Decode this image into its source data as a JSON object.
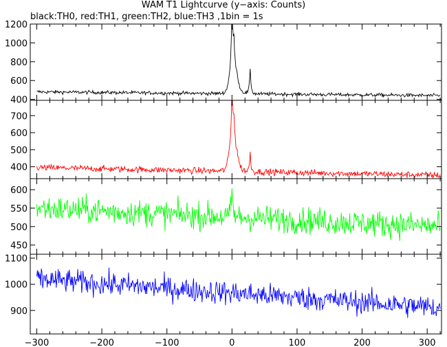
{
  "title": "WAM T1 Lightcurve (y−axis: Counts)",
  "subtitle": "black:TH0, red:TH1, green:TH2, blue:TH3 ,1bin = 1s",
  "chart_data": [
    {
      "type": "line",
      "name": "TH0",
      "color": "#000000",
      "ylim": [
        390,
        1200
      ],
      "yticks": [
        400,
        600,
        800,
        1000,
        1200
      ],
      "xlim": [
        -310,
        322
      ],
      "baseline_start": 480,
      "baseline_end": 440,
      "noise": 16,
      "features": [
        {
          "x": 0,
          "y": 1200,
          "width": 2.2
        },
        {
          "x": 3,
          "y": 880,
          "width": 3
        },
        {
          "x": 8,
          "y": 620,
          "width": 4
        },
        {
          "x": 28,
          "y": 740,
          "width": 1.5
        },
        {
          "x": -5,
          "y": 540,
          "width": 3
        }
      ]
    },
    {
      "type": "line",
      "name": "TH1",
      "color": "#ff0000",
      "ylim": [
        330,
        790
      ],
      "yticks": [
        400,
        500,
        600,
        700
      ],
      "xlim": [
        -310,
        322
      ],
      "baseline_start": 395,
      "baseline_end": 350,
      "noise": 16,
      "features": [
        {
          "x": 0,
          "y": 790,
          "width": 2.2
        },
        {
          "x": 3,
          "y": 620,
          "width": 3
        },
        {
          "x": 8,
          "y": 470,
          "width": 4
        },
        {
          "x": 28,
          "y": 500,
          "width": 1.5
        },
        {
          "x": -5,
          "y": 450,
          "width": 3
        }
      ]
    },
    {
      "type": "line",
      "name": "TH2",
      "color": "#00ff00",
      "ylim": [
        425,
        630
      ],
      "yticks": [
        450,
        500,
        550,
        600
      ],
      "xlim": [
        -310,
        322
      ],
      "baseline_start": 550,
      "baseline_end": 500,
      "noise": 30,
      "features": [
        {
          "x": 0,
          "y": 625,
          "width": 1.5
        }
      ]
    },
    {
      "type": "line",
      "name": "TH3",
      "color": "#0000ff",
      "ylim": [
        810,
        1115
      ],
      "yticks": [
        900,
        1000,
        1100
      ],
      "xlim": [
        -310,
        322
      ],
      "baseline_start": 1020,
      "baseline_end": 910,
      "noise": 38,
      "features": []
    }
  ],
  "xaxis": {
    "xlim": [
      -310,
      322
    ],
    "ticks": [
      -300,
      -200,
      -100,
      0,
      100,
      200,
      300
    ],
    "tick_labels": [
      "−300",
      "−200",
      "−100",
      "0",
      "100",
      "200",
      "300"
    ]
  }
}
